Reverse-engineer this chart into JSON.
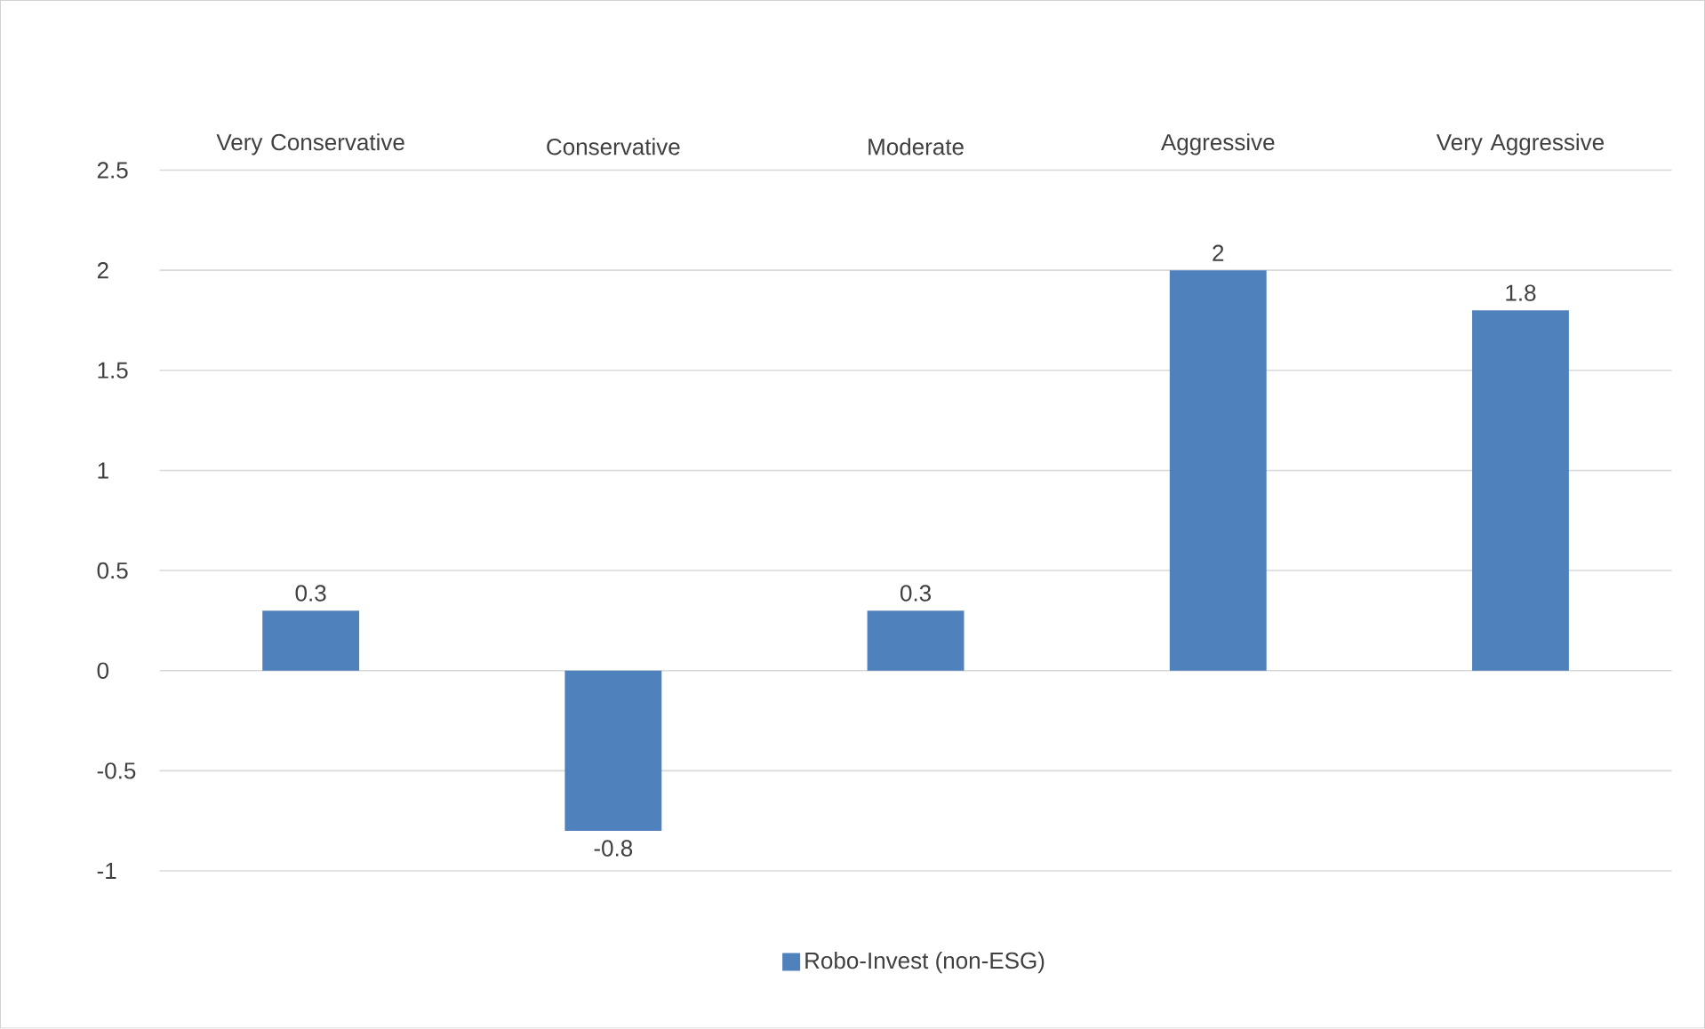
{
  "chart_data": {
    "type": "bar",
    "categories": [
      "Very Conservative",
      "Conservative",
      "Moderate",
      "Aggressive",
      "Very Aggressive"
    ],
    "series": [
      {
        "name": "Robo-Invest (non-ESG)",
        "color": "#4f81bd",
        "values": [
          0.3,
          -0.8,
          0.3,
          2,
          1.8
        ]
      }
    ],
    "ylim": [
      -1,
      2.5
    ],
    "yticks": [
      -1,
      -0.5,
      0,
      0.5,
      1,
      1.5,
      2,
      2.5
    ],
    "grid": "y",
    "legend": "bottom",
    "data_labels": true
  }
}
